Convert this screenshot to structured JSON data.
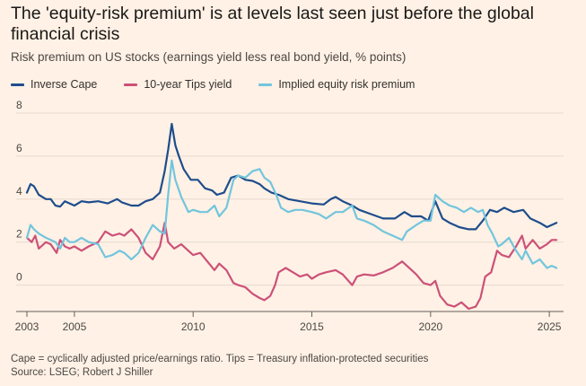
{
  "header": {
    "title": "The 'equity-risk premium' is at levels last seen just before the global financial crisis",
    "subtitle": "Risk premium on US stocks (earnings yield less real bond yield, % points)"
  },
  "footer": {
    "note": "Cape = cyclically adjusted price/earnings ratio. Tips = Treasury inflation-protected securities",
    "source": "Source: LSEG; Robert J Shiller"
  },
  "chart_data": {
    "type": "line",
    "title": "The 'equity-risk premium' is at levels last seen just before the global financial crisis",
    "subtitle": "Risk premium on US stocks (earnings yield less real bond yield, % points)",
    "xlabel": "",
    "ylabel": "",
    "xlim": [
      2003,
      2025.6
    ],
    "ylim": [
      -1.1,
      8
    ],
    "yticks": [
      0,
      2,
      4,
      6,
      8
    ],
    "ytick_labels": [
      "0",
      "2",
      "4",
      "6",
      "8"
    ],
    "xticks": [
      2003,
      2005,
      2010,
      2015,
      2020,
      2025
    ],
    "xtick_labels": [
      "2003",
      "2005",
      "2010",
      "2015",
      "2020",
      "2025"
    ],
    "grid": "horizontal",
    "legend_position": "top-left",
    "series": [
      {
        "name": "Inverse Cape",
        "color": "#1e4d8c",
        "points": [
          [
            2003.0,
            4.3
          ],
          [
            2003.15,
            4.7
          ],
          [
            2003.3,
            4.6
          ],
          [
            2003.5,
            4.2
          ],
          [
            2003.8,
            4.0
          ],
          [
            2004.0,
            4.0
          ],
          [
            2004.2,
            3.7
          ],
          [
            2004.4,
            3.65
          ],
          [
            2004.6,
            3.9
          ],
          [
            2004.8,
            3.8
          ],
          [
            2005.0,
            3.7
          ],
          [
            2005.3,
            3.9
          ],
          [
            2005.6,
            3.85
          ],
          [
            2006.0,
            3.9
          ],
          [
            2006.4,
            3.8
          ],
          [
            2006.8,
            4.0
          ],
          [
            2007.0,
            3.85
          ],
          [
            2007.4,
            3.7
          ],
          [
            2007.7,
            3.7
          ],
          [
            2008.0,
            3.9
          ],
          [
            2008.3,
            4.0
          ],
          [
            2008.6,
            4.3
          ],
          [
            2008.8,
            5.3
          ],
          [
            2008.95,
            6.3
          ],
          [
            2009.1,
            7.5
          ],
          [
            2009.25,
            6.5
          ],
          [
            2009.4,
            6.0
          ],
          [
            2009.6,
            5.4
          ],
          [
            2009.9,
            4.9
          ],
          [
            2010.2,
            4.9
          ],
          [
            2010.5,
            4.5
          ],
          [
            2010.8,
            4.4
          ],
          [
            2011.0,
            4.2
          ],
          [
            2011.3,
            4.3
          ],
          [
            2011.6,
            5.0
          ],
          [
            2011.9,
            5.1
          ],
          [
            2012.2,
            4.9
          ],
          [
            2012.5,
            4.85
          ],
          [
            2012.8,
            4.7
          ],
          [
            2013.0,
            4.5
          ],
          [
            2013.3,
            4.3
          ],
          [
            2013.6,
            4.2
          ],
          [
            2014.0,
            4.0
          ],
          [
            2014.5,
            3.9
          ],
          [
            2015.0,
            3.8
          ],
          [
            2015.5,
            3.75
          ],
          [
            2015.8,
            4.0
          ],
          [
            2016.0,
            4.1
          ],
          [
            2016.3,
            3.9
          ],
          [
            2016.7,
            3.7
          ],
          [
            2017.0,
            3.5
          ],
          [
            2017.5,
            3.3
          ],
          [
            2018.0,
            3.1
          ],
          [
            2018.5,
            3.1
          ],
          [
            2018.9,
            3.4
          ],
          [
            2019.2,
            3.2
          ],
          [
            2019.6,
            3.2
          ],
          [
            2019.9,
            3.0
          ],
          [
            2020.2,
            3.9
          ],
          [
            2020.5,
            3.1
          ],
          [
            2020.8,
            2.9
          ],
          [
            2021.2,
            2.7
          ],
          [
            2021.6,
            2.6
          ],
          [
            2021.9,
            2.6
          ],
          [
            2022.2,
            3.0
          ],
          [
            2022.5,
            3.5
          ],
          [
            2022.8,
            3.4
          ],
          [
            2023.1,
            3.6
          ],
          [
            2023.5,
            3.4
          ],
          [
            2023.9,
            3.5
          ],
          [
            2024.2,
            3.1
          ],
          [
            2024.6,
            2.9
          ],
          [
            2024.9,
            2.7
          ],
          [
            2025.1,
            2.8
          ],
          [
            2025.3,
            2.9
          ]
        ]
      },
      {
        "name": "10-year Tips yield",
        "color": "#cc5178",
        "points": [
          [
            2003.0,
            2.2
          ],
          [
            2003.2,
            2.0
          ],
          [
            2003.35,
            2.3
          ],
          [
            2003.5,
            1.7
          ],
          [
            2003.8,
            2.0
          ],
          [
            2004.0,
            1.9
          ],
          [
            2004.25,
            1.5
          ],
          [
            2004.4,
            2.1
          ],
          [
            2004.6,
            1.8
          ],
          [
            2004.8,
            1.7
          ],
          [
            2005.0,
            1.8
          ],
          [
            2005.3,
            1.6
          ],
          [
            2005.6,
            1.8
          ],
          [
            2006.0,
            2.0
          ],
          [
            2006.3,
            2.5
          ],
          [
            2006.6,
            2.3
          ],
          [
            2006.9,
            2.4
          ],
          [
            2007.1,
            2.3
          ],
          [
            2007.4,
            2.6
          ],
          [
            2007.7,
            2.2
          ],
          [
            2008.0,
            1.5
          ],
          [
            2008.3,
            1.2
          ],
          [
            2008.6,
            1.8
          ],
          [
            2008.8,
            2.9
          ],
          [
            2008.95,
            2.0
          ],
          [
            2009.2,
            1.7
          ],
          [
            2009.5,
            1.9
          ],
          [
            2009.8,
            1.6
          ],
          [
            2010.0,
            1.4
          ],
          [
            2010.3,
            1.5
          ],
          [
            2010.6,
            1.1
          ],
          [
            2010.9,
            0.7
          ],
          [
            2011.1,
            1.0
          ],
          [
            2011.4,
            0.7
          ],
          [
            2011.7,
            0.1
          ],
          [
            2011.9,
            0.0
          ],
          [
            2012.2,
            -0.1
          ],
          [
            2012.5,
            -0.4
          ],
          [
            2012.8,
            -0.6
          ],
          [
            2013.0,
            -0.7
          ],
          [
            2013.25,
            -0.5
          ],
          [
            2013.45,
            0.0
          ],
          [
            2013.6,
            0.6
          ],
          [
            2013.9,
            0.8
          ],
          [
            2014.2,
            0.6
          ],
          [
            2014.5,
            0.4
          ],
          [
            2014.8,
            0.5
          ],
          [
            2015.0,
            0.3
          ],
          [
            2015.3,
            0.5
          ],
          [
            2015.6,
            0.6
          ],
          [
            2016.0,
            0.7
          ],
          [
            2016.3,
            0.5
          ],
          [
            2016.7,
            0.0
          ],
          [
            2016.9,
            0.4
          ],
          [
            2017.2,
            0.5
          ],
          [
            2017.6,
            0.45
          ],
          [
            2018.0,
            0.6
          ],
          [
            2018.4,
            0.8
          ],
          [
            2018.8,
            1.1
          ],
          [
            2019.0,
            0.9
          ],
          [
            2019.4,
            0.5
          ],
          [
            2019.7,
            0.1
          ],
          [
            2020.0,
            0.0
          ],
          [
            2020.2,
            0.2
          ],
          [
            2020.4,
            -0.5
          ],
          [
            2020.7,
            -0.9
          ],
          [
            2021.0,
            -1.0
          ],
          [
            2021.3,
            -0.8
          ],
          [
            2021.6,
            -1.1
          ],
          [
            2021.9,
            -1.0
          ],
          [
            2022.1,
            -0.6
          ],
          [
            2022.3,
            0.4
          ],
          [
            2022.55,
            0.6
          ],
          [
            2022.8,
            1.6
          ],
          [
            2023.0,
            1.4
          ],
          [
            2023.3,
            1.3
          ],
          [
            2023.6,
            1.8
          ],
          [
            2023.85,
            2.3
          ],
          [
            2024.0,
            1.7
          ],
          [
            2024.3,
            2.1
          ],
          [
            2024.6,
            1.7
          ],
          [
            2024.9,
            1.9
          ],
          [
            2025.1,
            2.1
          ],
          [
            2025.3,
            2.1
          ]
        ]
      },
      {
        "name": "Implied equity risk premium",
        "color": "#72c5dd",
        "points": [
          [
            2003.0,
            2.2
          ],
          [
            2003.15,
            2.8
          ],
          [
            2003.3,
            2.6
          ],
          [
            2003.5,
            2.4
          ],
          [
            2003.8,
            2.2
          ],
          [
            2004.0,
            2.1
          ],
          [
            2004.2,
            2.0
          ],
          [
            2004.4,
            1.7
          ],
          [
            2004.6,
            2.2
          ],
          [
            2004.8,
            2.0
          ],
          [
            2005.0,
            2.0
          ],
          [
            2005.3,
            2.2
          ],
          [
            2005.6,
            2.0
          ],
          [
            2006.0,
            1.9
          ],
          [
            2006.3,
            1.3
          ],
          [
            2006.6,
            1.4
          ],
          [
            2006.9,
            1.6
          ],
          [
            2007.1,
            1.5
          ],
          [
            2007.4,
            1.2
          ],
          [
            2007.7,
            1.5
          ],
          [
            2008.0,
            2.2
          ],
          [
            2008.3,
            2.8
          ],
          [
            2008.6,
            2.5
          ],
          [
            2008.8,
            2.4
          ],
          [
            2008.95,
            4.2
          ],
          [
            2009.1,
            5.8
          ],
          [
            2009.25,
            4.9
          ],
          [
            2009.5,
            4.1
          ],
          [
            2009.8,
            3.4
          ],
          [
            2010.0,
            3.5
          ],
          [
            2010.3,
            3.4
          ],
          [
            2010.6,
            3.4
          ],
          [
            2010.9,
            3.7
          ],
          [
            2011.1,
            3.2
          ],
          [
            2011.4,
            3.6
          ],
          [
            2011.7,
            4.9
          ],
          [
            2011.9,
            5.1
          ],
          [
            2012.2,
            5.0
          ],
          [
            2012.5,
            5.3
          ],
          [
            2012.8,
            5.4
          ],
          [
            2013.0,
            5.0
          ],
          [
            2013.25,
            4.8
          ],
          [
            2013.5,
            4.2
          ],
          [
            2013.7,
            3.6
          ],
          [
            2014.0,
            3.4
          ],
          [
            2014.3,
            3.5
          ],
          [
            2014.6,
            3.5
          ],
          [
            2015.0,
            3.4
          ],
          [
            2015.3,
            3.3
          ],
          [
            2015.6,
            3.1
          ],
          [
            2016.0,
            3.4
          ],
          [
            2016.3,
            3.4
          ],
          [
            2016.7,
            3.7
          ],
          [
            2016.9,
            3.1
          ],
          [
            2017.2,
            3.0
          ],
          [
            2017.6,
            2.8
          ],
          [
            2018.0,
            2.5
          ],
          [
            2018.4,
            2.3
          ],
          [
            2018.8,
            2.1
          ],
          [
            2019.0,
            2.5
          ],
          [
            2019.4,
            2.8
          ],
          [
            2019.7,
            3.0
          ],
          [
            2020.0,
            3.0
          ],
          [
            2020.2,
            4.2
          ],
          [
            2020.5,
            3.9
          ],
          [
            2020.8,
            3.7
          ],
          [
            2021.1,
            3.6
          ],
          [
            2021.4,
            3.4
          ],
          [
            2021.7,
            3.6
          ],
          [
            2022.0,
            3.4
          ],
          [
            2022.2,
            3.5
          ],
          [
            2022.4,
            2.8
          ],
          [
            2022.6,
            2.4
          ],
          [
            2022.85,
            1.8
          ],
          [
            2023.0,
            1.9
          ],
          [
            2023.3,
            2.2
          ],
          [
            2023.6,
            1.6
          ],
          [
            2023.85,
            1.2
          ],
          [
            2024.0,
            1.6
          ],
          [
            2024.3,
            1.0
          ],
          [
            2024.6,
            1.2
          ],
          [
            2024.9,
            0.8
          ],
          [
            2025.1,
            0.9
          ],
          [
            2025.3,
            0.8
          ]
        ]
      }
    ]
  }
}
